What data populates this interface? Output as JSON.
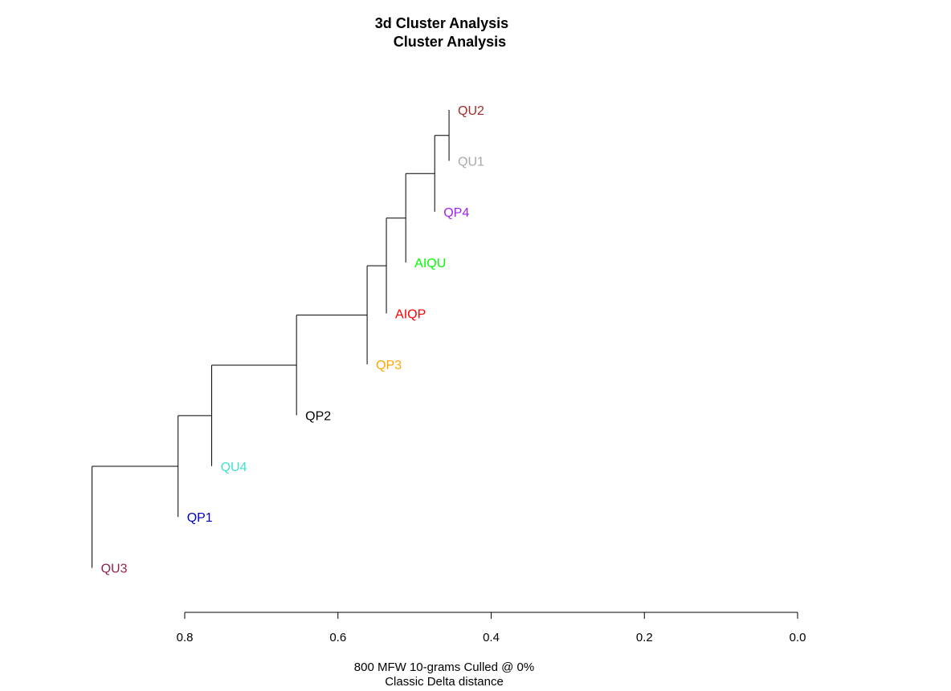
{
  "chart_data": {
    "type": "dendrogram",
    "title": "3d Cluster Analysis",
    "subtitle": "Cluster Analysis",
    "xlabel_line1": "800 MFW 10-grams Culled @ 0%",
    "xlabel_line2": "Classic Delta distance",
    "xlim": [
      0.0,
      0.8
    ],
    "x_reversed": true,
    "ticks": [
      "0.8",
      "0.6",
      "0.4",
      "0.2",
      "0.0"
    ],
    "tick_values": [
      0.8,
      0.6,
      0.4,
      0.2,
      0.0
    ],
    "leaves": [
      {
        "label": "QU2",
        "color": "#a52a2a"
      },
      {
        "label": "QU1",
        "color": "#a9a9a9"
      },
      {
        "label": "QP4",
        "color": "#a020f0"
      },
      {
        "label": "AIQU",
        "color": "#00ff00"
      },
      {
        "label": "AIQP",
        "color": "#ff0000"
      },
      {
        "label": "QP3",
        "color": "#ffa500"
      },
      {
        "label": "QP2",
        "color": "#000000"
      },
      {
        "label": "QU4",
        "color": "#40e0d0"
      },
      {
        "label": "QP1",
        "color": "#0000cd"
      },
      {
        "label": "QU3",
        "color": "#8b2252"
      }
    ],
    "leaf_heights": [
      0.455,
      0.455,
      0.4737,
      0.5115,
      0.5368,
      0.5619,
      0.6541,
      0.7648,
      0.8087,
      0.921
    ],
    "merges": [
      {
        "a": "QU2",
        "b": "QU1",
        "height": 0.455
      },
      {
        "a": "QU2+QU1",
        "b": "QP4",
        "height": 0.4737
      },
      {
        "a": "QU2+QU1+QP4",
        "b": "AIQU",
        "height": 0.5115
      },
      {
        "a": "..+AIQU",
        "b": "AIQP",
        "height": 0.5368
      },
      {
        "a": "..+AIQP",
        "b": "QP3",
        "height": 0.5619
      },
      {
        "a": "..+QP3",
        "b": "QP2",
        "height": 0.6541
      },
      {
        "a": "..+QP2",
        "b": "QU4",
        "height": 0.7648
      },
      {
        "a": "..+QU4",
        "b": "QP1",
        "height": 0.8087
      },
      {
        "a": "..+QP1",
        "b": "QU3",
        "height": 0.921
      }
    ]
  }
}
